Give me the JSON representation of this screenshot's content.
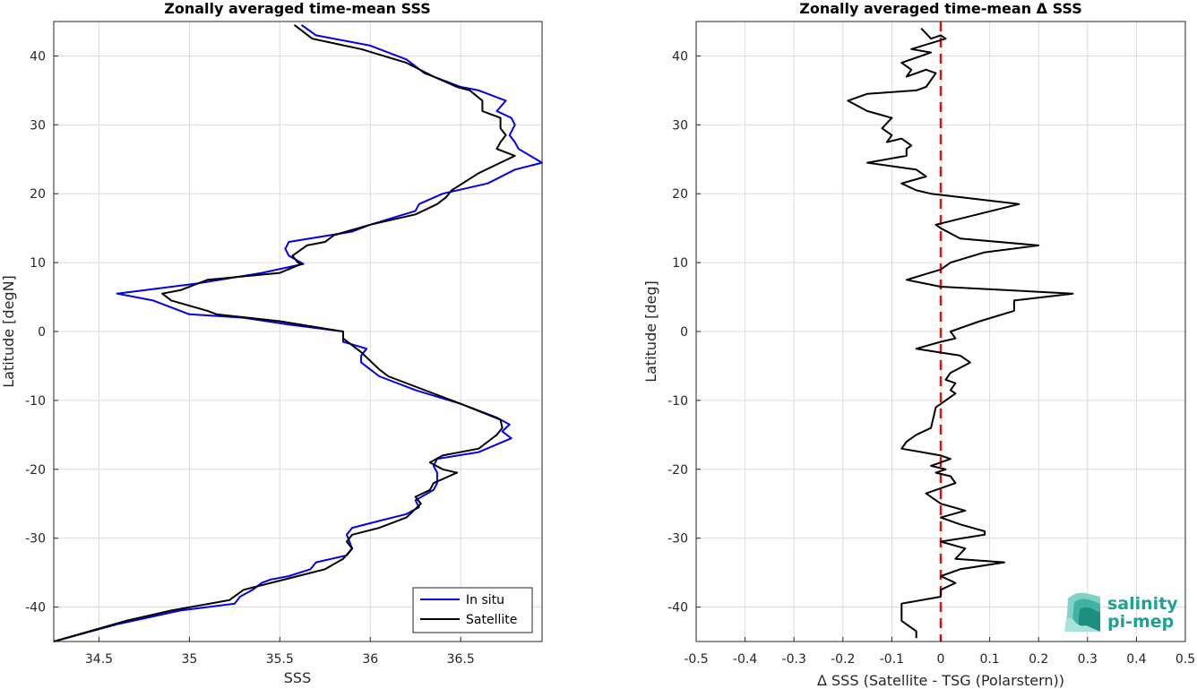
{
  "chart_data": [
    {
      "type": "line",
      "title": "Zonally averaged time-mean SSS",
      "xlabel": "SSS",
      "ylabel": "Latitude [degN]",
      "xlim": [
        34.25,
        36.95
      ],
      "ylim": [
        -45,
        45
      ],
      "xticks": [
        "34.5",
        "35",
        "35.5",
        "36",
        "36.5"
      ],
      "xtick_values": [
        34.5,
        35,
        35.5,
        36,
        36.5
      ],
      "yticks": [
        "-40",
        "-30",
        "-20",
        "-10",
        "0",
        "10",
        "20",
        "30",
        "40"
      ],
      "ytick_values": [
        -40,
        -30,
        -20,
        -10,
        0,
        10,
        20,
        30,
        40
      ],
      "grid": true,
      "legend_position": "bottom-right",
      "series": [
        {
          "name": "In situ",
          "color": "#0000ee",
          "points": [
            [
              35.62,
              44.5
            ],
            [
              35.7,
              43
            ],
            [
              36.0,
              41.5
            ],
            [
              36.2,
              39.5
            ],
            [
              36.3,
              37.5
            ],
            [
              36.5,
              35.5
            ],
            [
              36.6,
              35
            ],
            [
              36.75,
              33.5
            ],
            [
              36.7,
              32
            ],
            [
              36.78,
              31
            ],
            [
              36.8,
              30
            ],
            [
              36.77,
              28.5
            ],
            [
              36.8,
              27.5
            ],
            [
              36.82,
              26.5
            ],
            [
              36.95,
              24.5
            ],
            [
              36.8,
              23.5
            ],
            [
              36.65,
              21.5
            ],
            [
              36.4,
              20
            ],
            [
              36.27,
              18.5
            ],
            [
              36.25,
              17.5
            ],
            [
              36.0,
              15.5
            ],
            [
              35.9,
              14.5
            ],
            [
              35.55,
              13
            ],
            [
              35.53,
              12
            ],
            [
              35.55,
              11
            ],
            [
              35.63,
              9.8
            ],
            [
              35.4,
              8.5
            ],
            [
              35.05,
              7
            ],
            [
              34.6,
              5.5
            ],
            [
              34.8,
              4.5
            ],
            [
              35.0,
              2.5
            ],
            [
              35.3,
              2
            ],
            [
              35.55,
              1
            ],
            [
              35.85,
              0
            ],
            [
              35.85,
              -1.5
            ],
            [
              35.98,
              -2.5
            ],
            [
              35.95,
              -3.5
            ],
            [
              35.95,
              -4.5
            ],
            [
              36.05,
              -6.5
            ],
            [
              36.25,
              -8.5
            ],
            [
              36.5,
              -10.5
            ],
            [
              36.7,
              -12.5
            ],
            [
              36.77,
              -13.5
            ],
            [
              36.73,
              -14.5
            ],
            [
              36.78,
              -15.5
            ],
            [
              36.6,
              -17.5
            ],
            [
              36.37,
              -18.5
            ],
            [
              36.35,
              -19.5
            ],
            [
              36.37,
              -20.5
            ],
            [
              36.37,
              -22
            ],
            [
              36.35,
              -23
            ],
            [
              36.25,
              -24.5
            ],
            [
              36.27,
              -25.5
            ],
            [
              36.2,
              -26.5
            ],
            [
              36.05,
              -27.5
            ],
            [
              35.9,
              -28.5
            ],
            [
              35.87,
              -29.5
            ],
            [
              35.9,
              -31.5
            ],
            [
              35.87,
              -32.5
            ],
            [
              35.7,
              -33.5
            ],
            [
              35.67,
              -34.5
            ],
            [
              35.55,
              -35.5
            ],
            [
              35.45,
              -36
            ],
            [
              35.4,
              -36.5
            ],
            [
              35.35,
              -37.5
            ],
            [
              35.28,
              -38.5
            ],
            [
              35.25,
              -39.5
            ],
            [
              34.95,
              -40.5
            ],
            [
              34.6,
              -42.5
            ],
            [
              34.25,
              -45
            ]
          ]
        },
        {
          "name": "Satellite",
          "color": "#000000",
          "points": [
            [
              35.58,
              44.5
            ],
            [
              35.68,
              42.5
            ],
            [
              35.95,
              41
            ],
            [
              36.2,
              39
            ],
            [
              36.35,
              37
            ],
            [
              36.48,
              35.5
            ],
            [
              36.55,
              35
            ],
            [
              36.62,
              33.5
            ],
            [
              36.62,
              32
            ],
            [
              36.72,
              31
            ],
            [
              36.72,
              29.5
            ],
            [
              36.75,
              28.5
            ],
            [
              36.72,
              27.5
            ],
            [
              36.7,
              26.5
            ],
            [
              36.8,
              25.5
            ],
            [
              36.6,
              23
            ],
            [
              36.45,
              20.5
            ],
            [
              36.42,
              19.5
            ],
            [
              36.37,
              18.5
            ],
            [
              36.25,
              17
            ],
            [
              36.0,
              15.5
            ],
            [
              35.8,
              14
            ],
            [
              35.75,
              13
            ],
            [
              35.65,
              12.5
            ],
            [
              35.57,
              11
            ],
            [
              35.6,
              10
            ],
            [
              35.62,
              9.8
            ],
            [
              35.5,
              8.5
            ],
            [
              35.1,
              7.5
            ],
            [
              34.95,
              6
            ],
            [
              34.85,
              5.5
            ],
            [
              34.9,
              4.5
            ],
            [
              35.1,
              3
            ],
            [
              35.15,
              2.5
            ],
            [
              35.5,
              1.5
            ],
            [
              35.85,
              0
            ],
            [
              35.85,
              -1
            ],
            [
              35.9,
              -2
            ],
            [
              35.95,
              -3
            ],
            [
              36.05,
              -5.5
            ],
            [
              36.1,
              -6.5
            ],
            [
              36.25,
              -8
            ],
            [
              36.5,
              -10.5
            ],
            [
              36.72,
              -12.8
            ],
            [
              36.73,
              -14
            ],
            [
              36.7,
              -15
            ],
            [
              36.65,
              -16
            ],
            [
              36.6,
              -17
            ],
            [
              36.4,
              -18
            ],
            [
              36.33,
              -19
            ],
            [
              36.4,
              -20
            ],
            [
              36.48,
              -20.5
            ],
            [
              36.35,
              -22
            ],
            [
              36.33,
              -23
            ],
            [
              36.25,
              -24
            ],
            [
              36.28,
              -25
            ],
            [
              36.2,
              -27
            ],
            [
              36.05,
              -28.5
            ],
            [
              35.9,
              -29.5
            ],
            [
              35.87,
              -30.5
            ],
            [
              35.9,
              -31.5
            ],
            [
              35.85,
              -33
            ],
            [
              35.75,
              -34.5
            ],
            [
              35.6,
              -35.5
            ],
            [
              35.45,
              -36.5
            ],
            [
              35.3,
              -37.5
            ],
            [
              35.22,
              -39
            ],
            [
              34.9,
              -40.5
            ],
            [
              34.65,
              -42
            ],
            [
              34.25,
              -45
            ]
          ]
        }
      ]
    },
    {
      "type": "line",
      "title": "Zonally averaged time-mean Δ SSS",
      "xlabel": "Δ SSS (Satellite - TSG (Polarstern))",
      "ylabel": "Latitude [deg]",
      "xlim": [
        -0.5,
        0.5
      ],
      "ylim": [
        -45,
        45
      ],
      "xticks": [
        "-0.5",
        "-0.4",
        "-0.3",
        "-0.2",
        "-0.1",
        "0",
        "0.1",
        "0.2",
        "0.3",
        "0.4",
        "0.5"
      ],
      "xtick_values": [
        -0.5,
        -0.4,
        -0.3,
        -0.2,
        -0.1,
        0,
        0.1,
        0.2,
        0.3,
        0.4,
        0.5
      ],
      "yticks": [
        "-40",
        "-30",
        "-20",
        "-10",
        "0",
        "10",
        "20",
        "30",
        "40"
      ],
      "ytick_values": [
        -40,
        -30,
        -20,
        -10,
        0,
        10,
        20,
        30,
        40
      ],
      "grid": true,
      "reference_line": {
        "x": 0,
        "color": "#dd1111",
        "style": "dashed"
      },
      "series": [
        {
          "color": "#000000",
          "points": [
            [
              -0.04,
              44
            ],
            [
              -0.02,
              42.5
            ],
            [
              0.0,
              43
            ],
            [
              0.01,
              42.5
            ],
            [
              -0.06,
              41
            ],
            [
              -0.02,
              40.5
            ],
            [
              -0.08,
              39
            ],
            [
              -0.06,
              38
            ],
            [
              -0.07,
              37
            ],
            [
              -0.03,
              38
            ],
            [
              -0.01,
              37.5
            ],
            [
              -0.03,
              35.5
            ],
            [
              -0.05,
              35
            ],
            [
              -0.15,
              34.5
            ],
            [
              -0.19,
              33.5
            ],
            [
              -0.15,
              32
            ],
            [
              -0.1,
              31
            ],
            [
              -0.12,
              29.5
            ],
            [
              -0.1,
              28.5
            ],
            [
              -0.11,
              27.5
            ],
            [
              -0.08,
              28
            ],
            [
              -0.06,
              27
            ],
            [
              -0.07,
              26.5
            ],
            [
              -0.07,
              25.5
            ],
            [
              -0.15,
              24.5
            ],
            [
              -0.05,
              23.5
            ],
            [
              -0.03,
              22.5
            ],
            [
              -0.08,
              21.5
            ],
            [
              -0.05,
              20.5
            ],
            [
              -0.02,
              20
            ],
            [
              0.16,
              18.5
            ],
            [
              -0.01,
              15.5
            ],
            [
              0.0,
              15
            ],
            [
              0.04,
              13.5
            ],
            [
              0.2,
              12.5
            ],
            [
              0.09,
              11.5
            ],
            [
              0.02,
              10
            ],
            [
              0.0,
              9
            ],
            [
              -0.07,
              7.5
            ],
            [
              0.0,
              6.5
            ],
            [
              0.27,
              5.5
            ],
            [
              0.15,
              4.5
            ],
            [
              0.15,
              3
            ],
            [
              0.08,
              1.5
            ],
            [
              0.02,
              0
            ],
            [
              0.03,
              -1
            ],
            [
              0.0,
              -1.5
            ],
            [
              -0.05,
              -2.5
            ],
            [
              0.04,
              -3.5
            ],
            [
              0.06,
              -4.5
            ],
            [
              0.02,
              -6
            ],
            [
              0.01,
              -7
            ],
            [
              0.03,
              -7.5
            ],
            [
              0.02,
              -8.5
            ],
            [
              0.03,
              -9
            ],
            [
              0.01,
              -10
            ],
            [
              -0.01,
              -11
            ],
            [
              -0.02,
              -14
            ],
            [
              -0.05,
              -15
            ],
            [
              -0.07,
              -16
            ],
            [
              -0.08,
              -17
            ],
            [
              0.0,
              -18
            ],
            [
              0.02,
              -18.5
            ],
            [
              -0.02,
              -19.5
            ],
            [
              0.01,
              -20
            ],
            [
              -0.01,
              -20.5
            ],
            [
              0.02,
              -21
            ],
            [
              0.03,
              -22
            ],
            [
              -0.03,
              -23.5
            ],
            [
              0.0,
              -25
            ],
            [
              0.05,
              -26
            ],
            [
              0.0,
              -27
            ],
            [
              0.04,
              -28
            ],
            [
              0.09,
              -29
            ],
            [
              0.09,
              -29.5
            ],
            [
              0.0,
              -30.5
            ],
            [
              0.05,
              -31.5
            ],
            [
              0.03,
              -33
            ],
            [
              0.13,
              -33.5
            ],
            [
              0.04,
              -34.5
            ],
            [
              0.0,
              -35.5
            ],
            [
              0.03,
              -36.5
            ],
            [
              0.0,
              -37.5
            ],
            [
              0.0,
              -38.5
            ],
            [
              -0.08,
              -39.5
            ],
            [
              -0.08,
              -41
            ],
            [
              -0.08,
              -42
            ],
            [
              -0.05,
              -43.5
            ],
            [
              -0.05,
              -44.5
            ]
          ]
        }
      ]
    }
  ],
  "logo": {
    "line1": "salinity",
    "line2": "pi-mep",
    "color": "#1fa193"
  }
}
